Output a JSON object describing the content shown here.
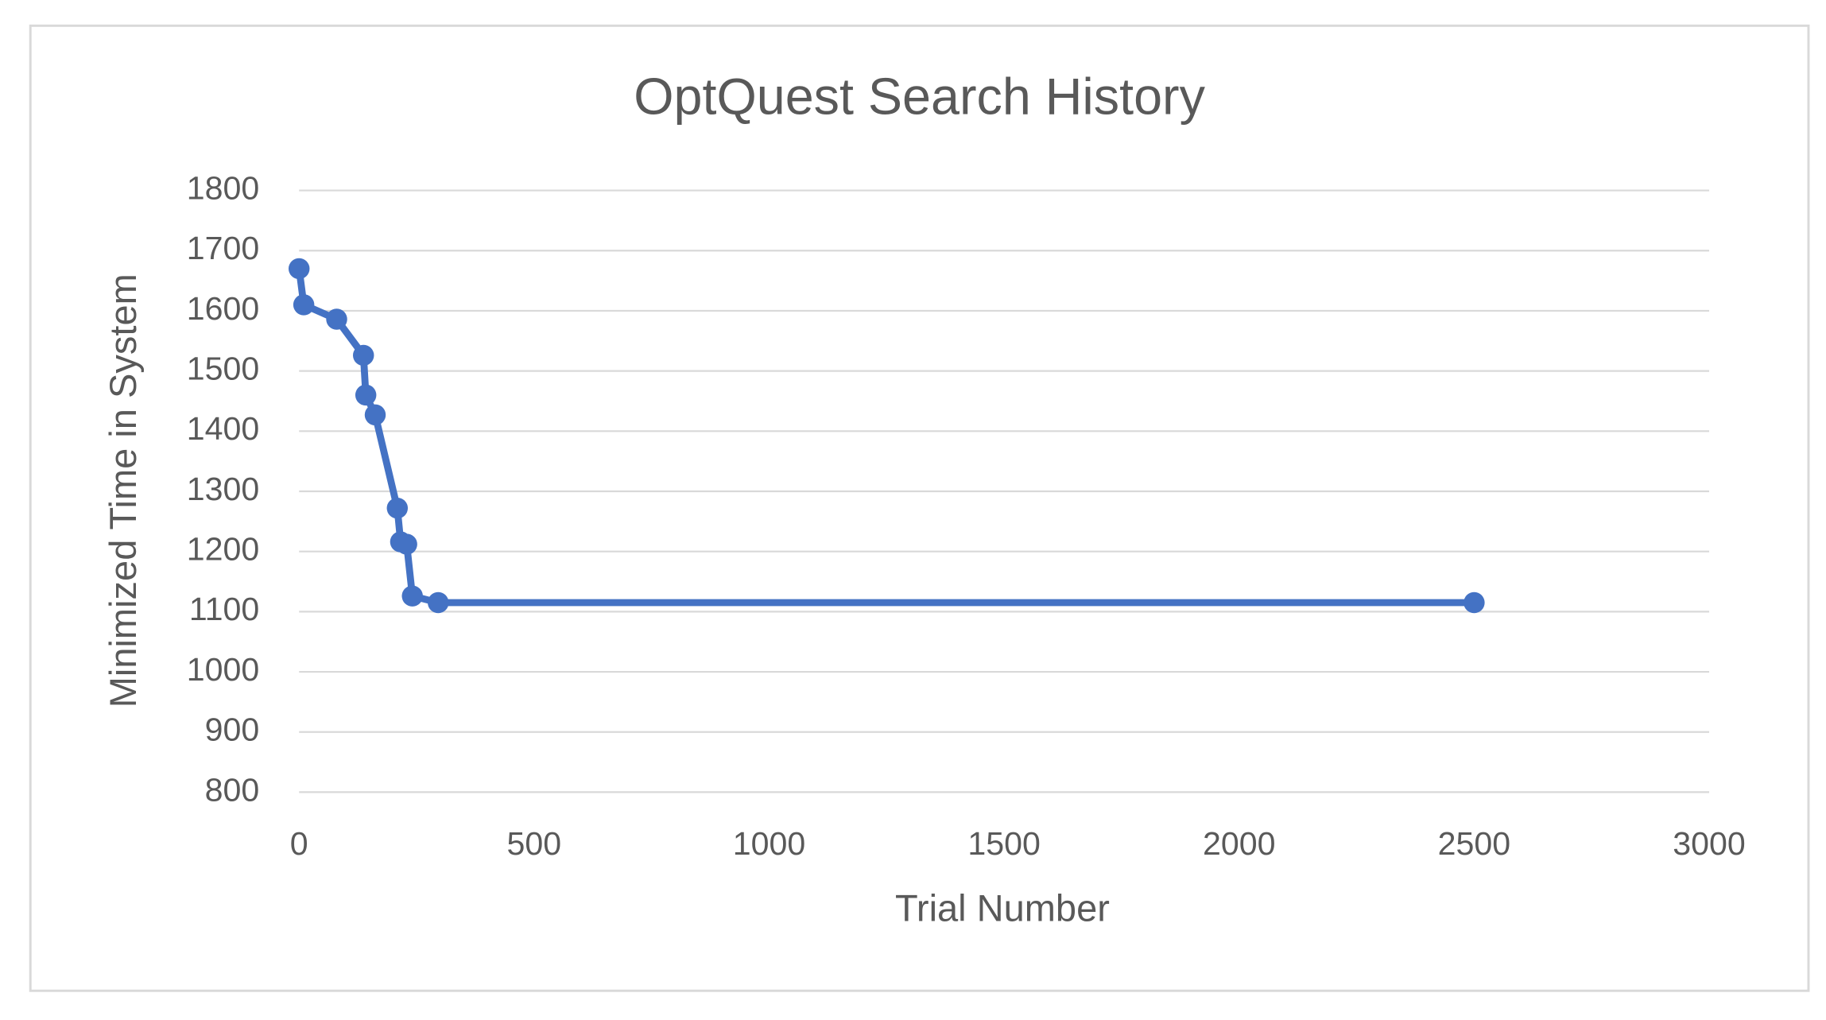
{
  "chart_data": {
    "type": "line",
    "title": "OptQuest Search History",
    "x_label": "Trial Number",
    "y_label": "Minimized Time in System",
    "series": [
      {
        "name": "Minimized Time in System",
        "color": "#4472c4",
        "x": [
          0,
          10,
          80,
          137,
          142,
          162,
          209,
          216,
          229,
          241,
          296,
          2500
        ],
        "values": [
          1670,
          1610,
          1586,
          1526,
          1460,
          1427,
          1272,
          1216,
          1212,
          1126,
          1115,
          1115
        ]
      }
    ],
    "xlim": [
      0,
      3000
    ],
    "xticks": [
      0,
      500,
      1000,
      1500,
      2000,
      2500,
      3000
    ],
    "ylim": [
      800,
      1800
    ],
    "yticks": [
      800,
      900,
      1000,
      1100,
      1200,
      1300,
      1400,
      1500,
      1600,
      1700,
      1800
    ],
    "grid": true,
    "markers": true
  }
}
